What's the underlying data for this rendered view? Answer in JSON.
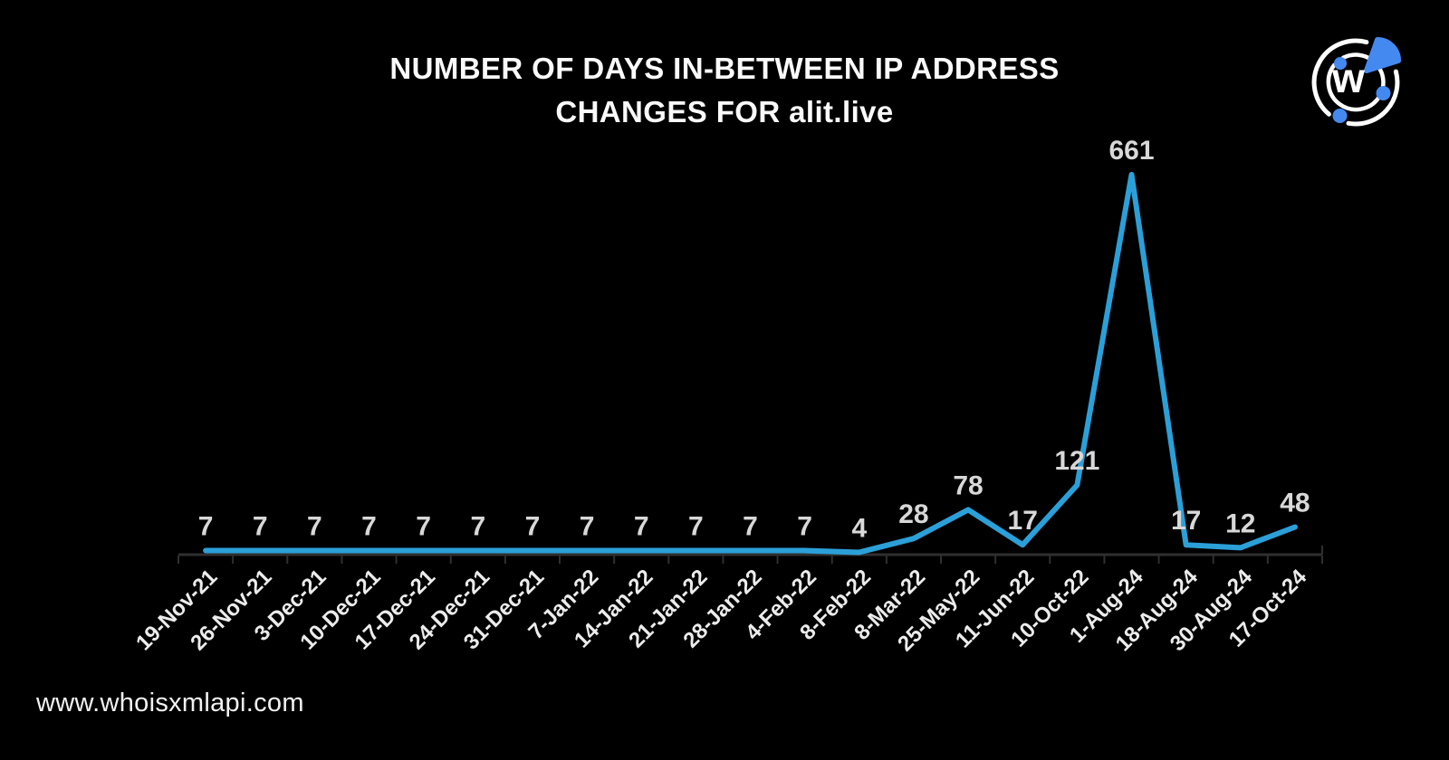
{
  "title": {
    "line1": "NUMBER OF DAYS IN-BETWEEN IP ADDRESS",
    "line2": "CHANGES FOR alit.live"
  },
  "footer": {
    "website": "www.whoisxmlapi.com"
  },
  "logo": {
    "name": "whoisxmlapi-logo",
    "letter": "w",
    "accent_color": "#4489F0",
    "ring_color": "#FFFFFF"
  },
  "chart_data": {
    "type": "line",
    "title": "NUMBER OF DAYS IN-BETWEEN IP ADDRESS CHANGES FOR alit.live",
    "categories": [
      "19-Nov-21",
      "26-Nov-21",
      "3-Dec-21",
      "10-Dec-21",
      "17-Dec-21",
      "24-Dec-21",
      "31-Dec-21",
      "7-Jan-22",
      "14-Jan-22",
      "21-Jan-22",
      "28-Jan-22",
      "4-Feb-22",
      "8-Feb-22",
      "8-Mar-22",
      "25-May-22",
      "11-Jun-22",
      "10-Oct-22",
      "1-Aug-24",
      "18-Aug-24",
      "30-Aug-24",
      "17-Oct-24"
    ],
    "values": [
      7,
      7,
      7,
      7,
      7,
      7,
      7,
      7,
      7,
      7,
      7,
      7,
      4,
      28,
      78,
      17,
      121,
      661,
      17,
      12,
      48
    ],
    "xlabel": "",
    "ylabel": "",
    "ylim": [
      0,
      700
    ],
    "grid": false,
    "legend": false,
    "value_labels": true,
    "background_color": "#000000",
    "line_color": "#2BA0D8",
    "label_color": "#D8D8D8",
    "tick_label_color": "#ECECEC",
    "axis_color": "#2F2F2F"
  }
}
